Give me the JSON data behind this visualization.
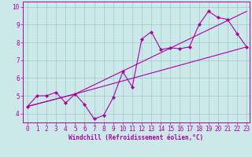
{
  "xlabel": "Windchill (Refroidissement éolien,°C)",
  "bg_color": "#cce8e8",
  "line_color": "#aa00aa",
  "grid_color": "#99cccc",
  "xmin": -0.5,
  "xmax": 23.3,
  "ymin": 3.5,
  "ymax": 10.3,
  "yticks": [
    4,
    5,
    6,
    7,
    8,
    9,
    10
  ],
  "xticks": [
    0,
    1,
    2,
    3,
    4,
    5,
    6,
    7,
    8,
    9,
    10,
    11,
    12,
    13,
    14,
    15,
    16,
    17,
    18,
    19,
    20,
    21,
    22,
    23
  ],
  "zigzag_x": [
    0,
    1,
    2,
    3,
    4,
    5,
    6,
    7,
    8,
    9,
    10,
    11,
    12,
    13,
    14,
    15,
    16,
    17,
    18,
    19,
    20,
    21,
    22,
    23
  ],
  "zigzag_y": [
    4.4,
    5.0,
    5.0,
    5.2,
    4.6,
    5.1,
    4.5,
    3.7,
    3.9,
    4.9,
    6.35,
    5.5,
    8.2,
    8.6,
    7.6,
    7.7,
    7.65,
    7.75,
    9.0,
    9.75,
    9.4,
    9.3,
    8.5,
    7.75
  ],
  "upper_line_x": [
    0,
    5,
    23
  ],
  "upper_line_y": [
    4.4,
    5.1,
    9.75
  ],
  "lower_line_x": [
    0,
    5,
    23
  ],
  "lower_line_y": [
    4.4,
    5.1,
    7.75
  ],
  "xlabel_fontsize": 5.5,
  "tick_fontsize": 5.5
}
